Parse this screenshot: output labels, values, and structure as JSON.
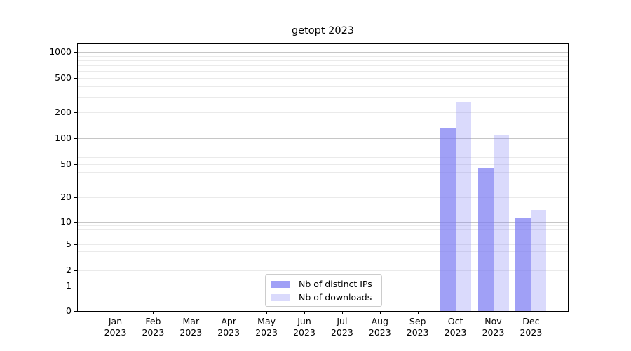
{
  "title": "getopt 2023",
  "legend": {
    "items": [
      {
        "label": "Nb of distinct IPs"
      },
      {
        "label": "Nb of downloads"
      }
    ]
  },
  "chart_data": {
    "type": "bar",
    "title": "getopt 2023",
    "categories": [
      "Jan 2023",
      "Feb 2023",
      "Mar 2023",
      "Apr 2023",
      "May 2023",
      "Jun 2023",
      "Jul 2023",
      "Aug 2023",
      "Sep 2023",
      "Oct 2023",
      "Nov 2023",
      "Dec 2023"
    ],
    "series": [
      {
        "name": "Nb of distinct IPs",
        "color": "rgba(123,123,243,0.72)",
        "values": [
          0,
          0,
          0,
          0,
          0,
          0,
          0,
          0,
          0,
          132,
          44,
          11
        ]
      },
      {
        "name": "Nb of downloads",
        "color": "rgba(123,123,243,0.28)",
        "values": [
          0,
          0,
          0,
          0,
          0,
          0,
          0,
          0,
          0,
          263,
          109,
          14
        ]
      }
    ],
    "xlabel": "",
    "ylabel": "",
    "y_scale": "symlog (0 then log decades, like log10(1+x))",
    "y_ticks": [
      1000,
      500,
      200,
      100,
      50,
      20,
      10,
      5,
      2,
      1,
      0
    ],
    "ylim": [
      0,
      1300
    ],
    "grid": "horizontal major (1,10,100,1000) + minor (2-9 per decade)",
    "legend_position": "lower center"
  },
  "colors": {
    "bar_base": "#7b7bf3",
    "bar_distinct_ips_solid": "#a0a0f1",
    "bar_downloads_solid": "#dadaf9",
    "major_grid": "#c6c6c6",
    "minor_grid": "#eaeaea",
    "axis": "#000000",
    "legend_border": "#cccccc",
    "background": "#ffffff"
  }
}
